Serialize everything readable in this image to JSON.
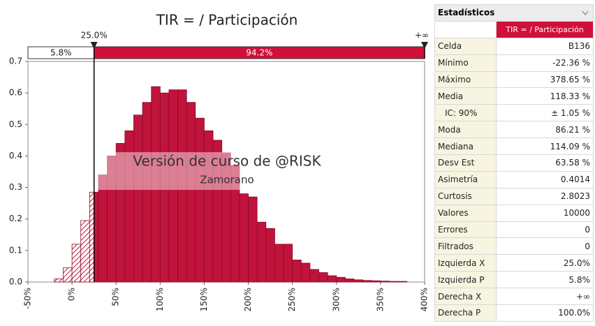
{
  "chart_data": {
    "type": "histogram",
    "title": "TIR = / Participación",
    "bins": [
      -20,
      -10,
      0,
      10,
      20,
      30,
      40,
      50,
      60,
      70,
      80,
      90,
      100,
      110,
      120,
      130,
      140,
      150,
      160,
      170,
      180,
      190,
      200,
      210,
      220,
      230,
      240,
      250,
      260,
      270,
      280,
      290,
      300,
      310,
      320,
      330,
      340,
      350,
      360,
      370,
      380
    ],
    "counts": [
      0.01,
      0.045,
      0.12,
      0.195,
      0.285,
      0.34,
      0.4,
      0.44,
      0.48,
      0.53,
      0.57,
      0.62,
      0.6,
      0.61,
      0.61,
      0.57,
      0.52,
      0.48,
      0.45,
      0.41,
      0.37,
      0.28,
      0.27,
      0.19,
      0.17,
      0.12,
      0.12,
      0.07,
      0.06,
      0.04,
      0.03,
      0.02,
      0.015,
      0.01,
      0.007,
      0.005,
      0.004,
      0.003,
      0.002,
      0.002
    ],
    "color": "#c0143c",
    "xlim": [
      -50,
      400
    ],
    "xticks": [
      {
        "value": -50,
        "label": "-50%"
      },
      {
        "value": 0,
        "label": "0%"
      },
      {
        "value": 50,
        "label": "50%"
      },
      {
        "value": 100,
        "label": "100%"
      },
      {
        "value": 150,
        "label": "150%"
      },
      {
        "value": 200,
        "label": "200%"
      },
      {
        "value": 250,
        "label": "250%"
      },
      {
        "value": 300,
        "label": "300%"
      },
      {
        "value": 350,
        "label": "350%"
      },
      {
        "value": 400,
        "label": "400%"
      }
    ],
    "ylim": [
      0,
      0.7
    ],
    "yticks": [
      {
        "value": 0,
        "label": "0.0"
      },
      0.1,
      0.2,
      0.3,
      0.4,
      0.5,
      0.6,
      0.7
    ],
    "delimiters": {
      "left": {
        "value": 25,
        "label": "25.0%"
      },
      "right_label": "+∞",
      "left_share": {
        "value": 5.8,
        "label": "5.8%"
      },
      "right_share": {
        "value": 94.2,
        "label": "94.2%"
      }
    },
    "watermark": {
      "line1": "Versión de curso de @RISK",
      "line2": "Zamorano"
    }
  },
  "table": {
    "header": "Estadísticos",
    "column_header": "TIR = / Participación",
    "rows": [
      [
        "Celda",
        "B136"
      ],
      [
        "Mínimo",
        "-22.36 %"
      ],
      [
        "Máximo",
        "378.65 %"
      ],
      [
        "Media",
        "118.33 %"
      ],
      [
        "IC: 90%",
        "± 1.05 %"
      ],
      [
        "Moda",
        "86.21 %"
      ],
      [
        "Mediana",
        "114.09 %"
      ],
      [
        "Desv Est",
        "63.58 %"
      ],
      [
        "Asimetría",
        "0.4014"
      ],
      [
        "Curtosis",
        "2.8023"
      ],
      [
        "Valores",
        "10000"
      ],
      [
        "Errores",
        "0"
      ],
      [
        "Filtrados",
        "0"
      ],
      [
        "Izquierda X",
        "25.0%"
      ],
      [
        "Izquierda P",
        "5.8%"
      ],
      [
        "Derecha X",
        "+∞"
      ],
      [
        "Derecha P",
        "100.0%"
      ]
    ]
  }
}
